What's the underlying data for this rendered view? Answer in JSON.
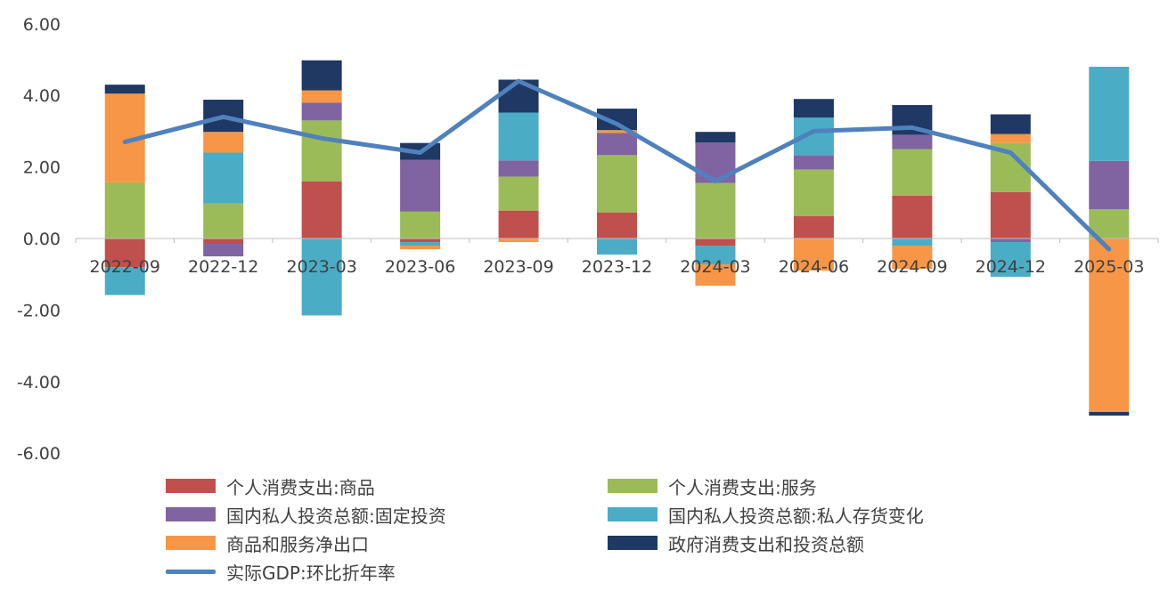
{
  "chart_data": {
    "type": "bar",
    "stacked": true,
    "categories": [
      "2022-09",
      "2022-12",
      "2023-03",
      "2023-06",
      "2023-09",
      "2023-12",
      "2024-03",
      "2024-06",
      "2024-09",
      "2024-12",
      "2025-03"
    ],
    "y_ticks": [
      "6.00",
      "4.00",
      "2.00",
      "0.00",
      "-2.00",
      "-4.00",
      "-6.00"
    ],
    "ylim": [
      -6,
      6
    ],
    "grid": false,
    "legend_position": "bottom",
    "series": [
      {
        "name": "个人消费支出:商品",
        "color": "#C0504D",
        "values": [
          -0.8,
          -0.15,
          1.6,
          -0.1,
          0.78,
          0.73,
          -0.2,
          0.63,
          1.2,
          1.3,
          0
        ]
      },
      {
        "name": "个人消费支出:服务",
        "color": "#9BBB59",
        "values": [
          1.57,
          0.98,
          1.7,
          0.75,
          0.95,
          1.6,
          1.55,
          1.3,
          1.3,
          1.37,
          0.82
        ]
      },
      {
        "name": "国内私人投资总额:固定投资",
        "color": "#8064A2",
        "values": [
          0,
          -0.35,
          0.5,
          1.45,
          0.45,
          0.62,
          1.13,
          0.4,
          0.4,
          -0.1,
          1.35
        ]
      },
      {
        "name": "国内私人投资总额:私人存货变化",
        "color": "#4BACC6",
        "values": [
          -0.78,
          1.42,
          -2.15,
          -0.1,
          1.34,
          -0.45,
          -0.52,
          1.05,
          -0.2,
          -0.97,
          2.63
        ]
      },
      {
        "name": "商品和服务净出口",
        "color": "#F79646",
        "values": [
          2.48,
          0.58,
          0.34,
          -0.1,
          -0.1,
          0.08,
          -0.6,
          -0.9,
          -0.65,
          0.25,
          -4.85
        ]
      },
      {
        "name": "政府消费支出和投资总额",
        "color": "#1F3864",
        "values": [
          0.25,
          0.9,
          0.84,
          0.47,
          0.92,
          0.6,
          0.3,
          0.52,
          0.83,
          0.55,
          -0.1
        ]
      }
    ],
    "line_series": {
      "name": "实际GDP:环比折年率",
      "color": "#4F81BD",
      "values": [
        2.7,
        3.4,
        2.8,
        2.4,
        4.4,
        3.2,
        1.6,
        3.0,
        3.1,
        2.4,
        -0.3
      ]
    }
  }
}
